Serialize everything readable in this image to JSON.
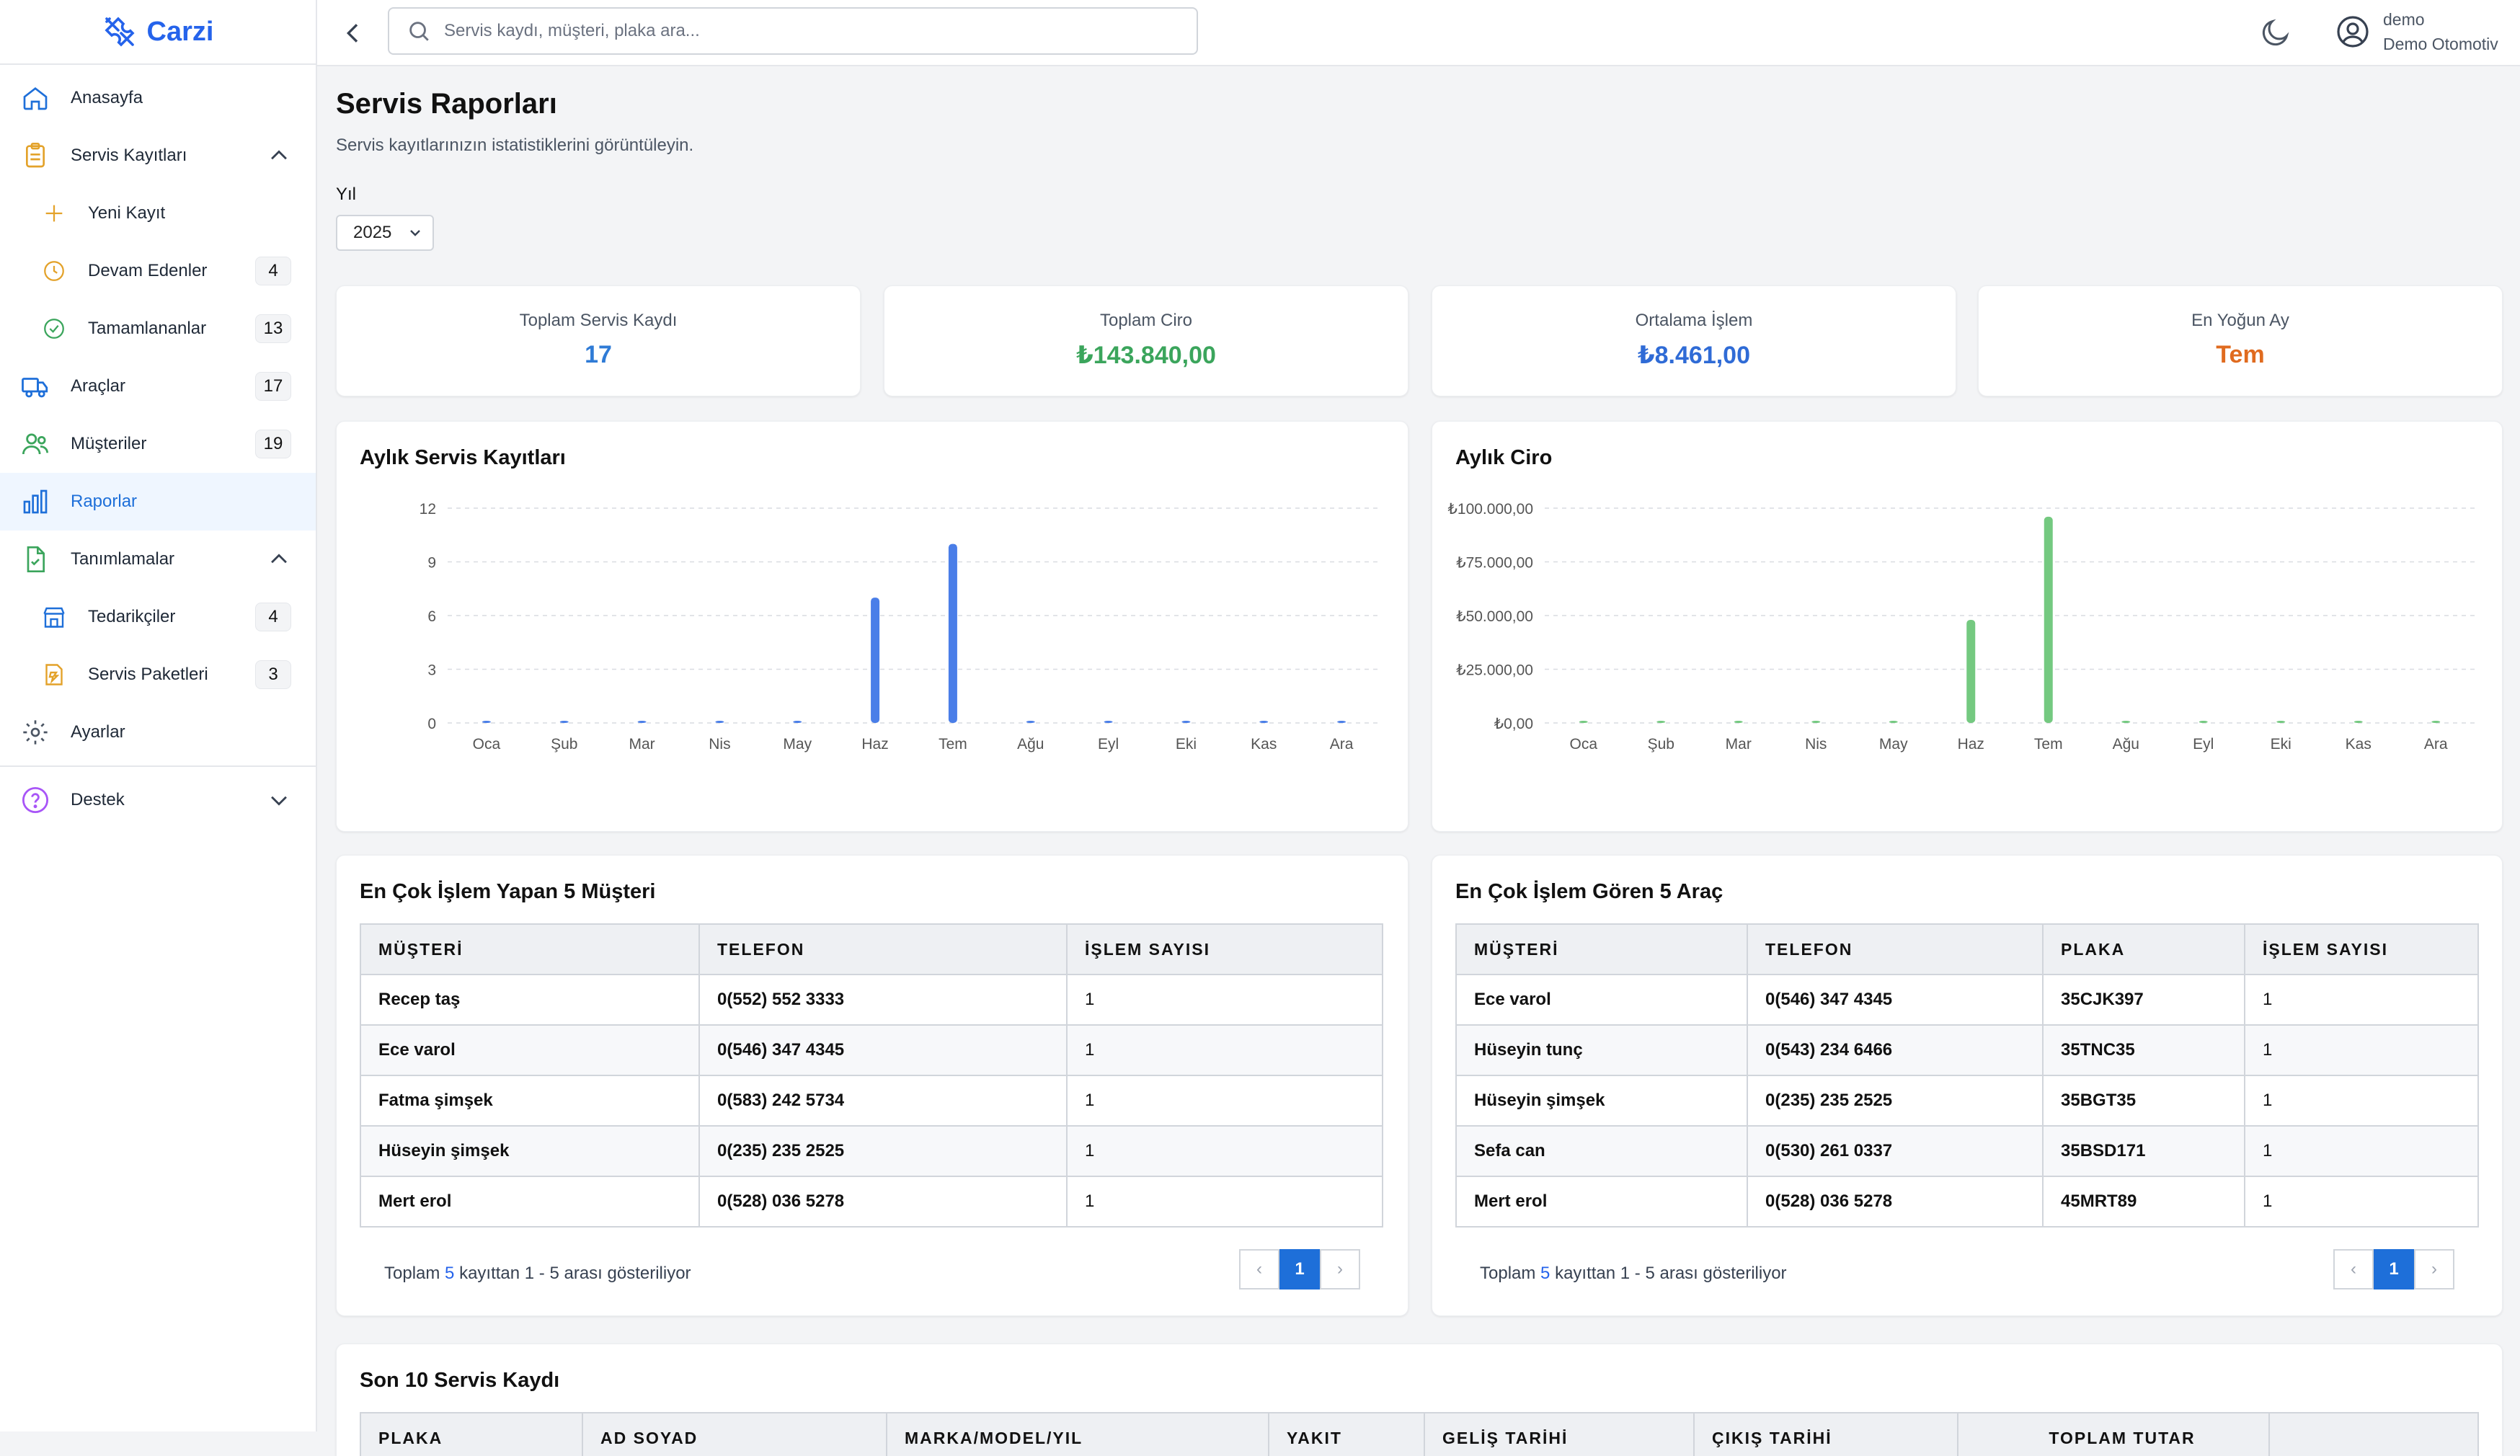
{
  "app": {
    "name": "Carzi"
  },
  "search": {
    "placeholder": "Servis kaydı, müşteri, plaka ara..."
  },
  "user": {
    "name": "demo",
    "company": "Demo Otomotiv"
  },
  "sidebar": {
    "items": [
      {
        "label": "Anasayfa",
        "icon": "home-icon"
      },
      {
        "label": "Servis Kayıtları",
        "icon": "clipboard-icon"
      },
      {
        "label": "Yeni Kayıt",
        "icon": "plus-icon"
      },
      {
        "label": "Devam Edenler",
        "icon": "clock-icon",
        "badge": "4"
      },
      {
        "label": "Tamamlananlar",
        "icon": "check-circle-icon",
        "badge": "13"
      },
      {
        "label": "Araçlar",
        "icon": "truck-icon",
        "badge": "17"
      },
      {
        "label": "Müşteriler",
        "icon": "users-icon",
        "badge": "19"
      },
      {
        "label": "Raporlar",
        "icon": "bar-chart-icon"
      },
      {
        "label": "Tanımlamalar",
        "icon": "file-check-icon"
      },
      {
        "label": "Tedarikçiler",
        "icon": "store-icon",
        "badge": "4"
      },
      {
        "label": "Servis Paketleri",
        "icon": "package-icon",
        "badge": "3"
      },
      {
        "label": "Ayarlar",
        "icon": "gear-icon"
      },
      {
        "label": "Destek",
        "icon": "help-circle-icon"
      }
    ]
  },
  "page": {
    "title": "Servis Raporları",
    "subtitle": "Servis kayıtlarınızın istatistiklerini görüntüleyin.",
    "year_label": "Yıl",
    "year_value": "2025"
  },
  "stats": [
    {
      "label": "Toplam Servis Kaydı",
      "value": "17",
      "color": "#2f7bd6"
    },
    {
      "label": "Toplam Ciro",
      "value": "₺143.840,00",
      "color": "#3ba55c"
    },
    {
      "label": "Ortalama İşlem",
      "value": "₺8.461,00",
      "color": "#2f6bd6"
    },
    {
      "label": "En Yoğun Ay",
      "value": "Tem",
      "color": "#e06b1f"
    }
  ],
  "chart_data": [
    {
      "type": "bar",
      "title": "Aylık Servis Kayıtları",
      "categories": [
        "Oca",
        "Şub",
        "Mar",
        "Nis",
        "May",
        "Haz",
        "Tem",
        "Ağu",
        "Eyl",
        "Eki",
        "Kas",
        "Ara"
      ],
      "values": [
        0,
        0,
        0,
        0,
        0,
        7,
        10,
        0,
        0,
        0,
        0,
        0
      ],
      "ylim": [
        0,
        12
      ],
      "yticks": [
        "0",
        "3",
        "6",
        "9",
        "12"
      ],
      "color": "#4a7ee8",
      "grid": true
    },
    {
      "type": "bar",
      "title": "Aylık Ciro",
      "categories": [
        "Oca",
        "Şub",
        "Mar",
        "Nis",
        "May",
        "Haz",
        "Tem",
        "Ağu",
        "Eyl",
        "Eki",
        "Kas",
        "Ara"
      ],
      "values": [
        0,
        0,
        0,
        0,
        0,
        48000,
        96000,
        0,
        0,
        0,
        0,
        0
      ],
      "ylim": [
        0,
        100000
      ],
      "yticks": [
        "₺0,00",
        "₺25.000,00",
        "₺50.000,00",
        "₺75.000,00",
        "₺100.000,00"
      ],
      "color": "#74c980",
      "grid": true
    }
  ],
  "top_customers": {
    "title": "En Çok İşlem Yapan 5 Müşteri",
    "columns": [
      "MÜŞTERİ",
      "TELEFON",
      "İŞLEM SAYISI"
    ],
    "rows": [
      [
        "Recep taş",
        "0(552) 552 3333",
        "1"
      ],
      [
        "Ece varol",
        "0(546) 347 4345",
        "1"
      ],
      [
        "Fatma şimşek",
        "0(583) 242 5734",
        "1"
      ],
      [
        "Hüseyin şimşek",
        "0(235) 235 2525",
        "1"
      ],
      [
        "Mert erol",
        "0(528) 036 5278",
        "1"
      ]
    ],
    "footer_pre": "Toplam",
    "footer_count": "5",
    "footer_post": "kayıttan 1 - 5 arası gösteriliyor",
    "page": "1"
  },
  "top_vehicles": {
    "title": "En Çok İşlem Gören 5 Araç",
    "columns": [
      "MÜŞTERİ",
      "TELEFON",
      "PLAKA",
      "İŞLEM SAYISI"
    ],
    "rows": [
      [
        "Ece varol",
        "0(546) 347 4345",
        "35CJK397",
        "1"
      ],
      [
        "Hüseyin tunç",
        "0(543) 234 6466",
        "35TNC35",
        "1"
      ],
      [
        "Hüseyin şimşek",
        "0(235) 235 2525",
        "35BGT35",
        "1"
      ],
      [
        "Sefa can",
        "0(530) 261 0337",
        "35BSD171",
        "1"
      ],
      [
        "Mert erol",
        "0(528) 036 5278",
        "45MRT89",
        "1"
      ]
    ],
    "footer_pre": "Toplam",
    "footer_count": "5",
    "footer_post": "kayıttan 1 - 5 arası gösteriliyor",
    "page": "1"
  },
  "recent": {
    "title": "Son 10 Servis Kaydı",
    "columns": [
      "PLAKA",
      "AD SOYAD",
      "MARKA/MODEL/YIL",
      "YAKIT",
      "GELİŞ TARİHİ",
      "ÇIKIŞ TARİHİ",
      "TOPLAM TUTAR",
      ""
    ]
  }
}
